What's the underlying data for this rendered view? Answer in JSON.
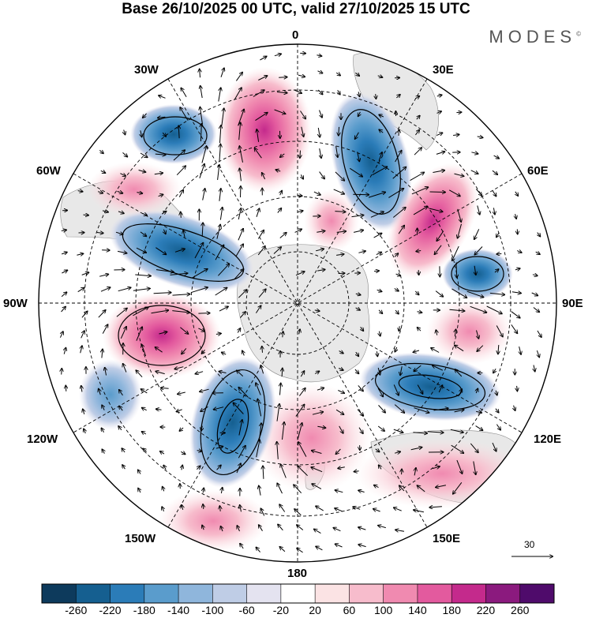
{
  "title": "Base 26/10/2025 00 UTC, valid 27/10/2025 15 UTC",
  "brand": "MODES",
  "brand_mark": "©",
  "projection": "south-polar-stereographic",
  "longitude_labels": {
    "top": "0",
    "bottom": "180",
    "left": "90W",
    "right": "90E",
    "upper_left_1": "30W",
    "upper_left_2": "60W",
    "upper_right_1": "30E",
    "upper_right_2": "60E",
    "lower_left_1": "120W",
    "lower_left_2": "150W",
    "lower_right_1": "120E",
    "lower_right_2": "150E"
  },
  "reference_vector": {
    "label": "30"
  },
  "colorbar": {
    "tick_labels": [
      "-260",
      "-220",
      "-180",
      "-140",
      "-100",
      "-60",
      "-20",
      "20",
      "60",
      "100",
      "140",
      "180",
      "220",
      "260"
    ],
    "colors": [
      "#0d3a5c",
      "#155f90",
      "#2b7cb8",
      "#5a9ccc",
      "#8fb6dc",
      "#bfcde6",
      "#e4e3f0",
      "#ffffff",
      "#fbe3e4",
      "#f7bccc",
      "#f08ab0",
      "#e35a9e",
      "#c42a8c",
      "#8b1a7e",
      "#4f0b6b"
    ]
  },
  "anomaly_centers": [
    {
      "name": "blue-30W",
      "lon": -28,
      "lat_label": "high",
      "value": -150
    },
    {
      "name": "pink-5W",
      "lon": -5,
      "value": 160
    },
    {
      "name": "blue-25E",
      "lon": 25,
      "value": -180
    },
    {
      "name": "pink-55E",
      "lon": 55,
      "value": 190
    },
    {
      "name": "blue-80E",
      "lon": 80,
      "value": -160
    },
    {
      "name": "pink-100E",
      "lon": 100,
      "value": 140
    },
    {
      "name": "blue-130E",
      "lon": 130,
      "value": -220
    },
    {
      "name": "pink-175E",
      "lon": 175,
      "value": 120
    },
    {
      "name": "blue-145W",
      "lon": -145,
      "value": -220
    },
    {
      "name": "pink-100W",
      "lon": -100,
      "value": 180
    },
    {
      "name": "blue-65W",
      "lon": -65,
      "value": -160
    }
  ]
}
